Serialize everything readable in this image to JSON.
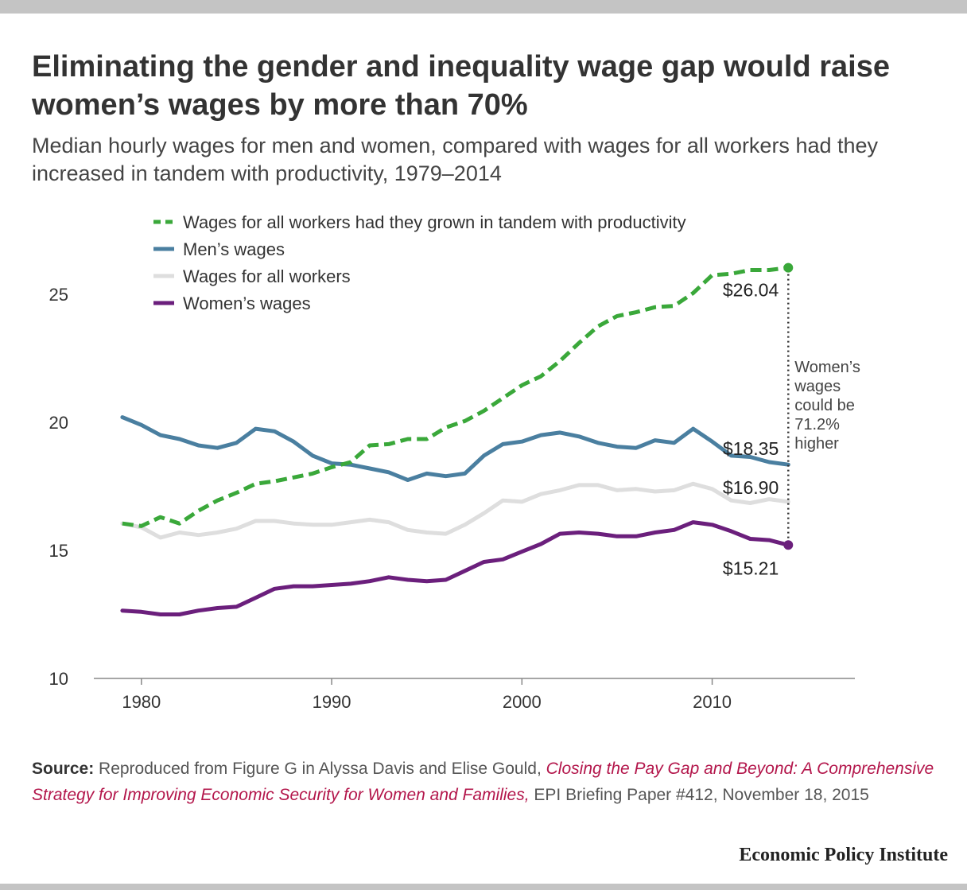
{
  "title": "Eliminating the gender and inequality wage gap would raise women’s wages by more than 70%",
  "subtitle": "Median hourly wages for men and women, compared with wages for all workers had they increased in tandem with productivity, 1979–2014",
  "source": {
    "label": "Source:",
    "text_before": "Reproduced from Figure G in Alyssa Davis and Elise Gould,",
    "italic_title": "Closing the Pay Gap and Beyond: A Comprehensive Strategy for Improving Economic Security for Women and Families,",
    "text_after": "EPI Briefing Paper #412, November 18, 2015"
  },
  "brand": "Economic Policy Institute",
  "chart_data": {
    "type": "line",
    "x": [
      1979,
      1980,
      1981,
      1982,
      1983,
      1984,
      1985,
      1986,
      1987,
      1988,
      1989,
      1990,
      1991,
      1992,
      1993,
      1994,
      1995,
      1996,
      1997,
      1998,
      1999,
      2000,
      2001,
      2002,
      2003,
      2004,
      2005,
      2006,
      2007,
      2008,
      2009,
      2010,
      2011,
      2012,
      2013,
      2014
    ],
    "series": [
      {
        "name": "Wages for all workers had they grown in tandem with productivity",
        "color": "#3aa83a",
        "style": "dashed",
        "values": [
          16.05,
          15.95,
          16.3,
          16.05,
          16.55,
          16.95,
          17.25,
          17.6,
          17.7,
          17.85,
          18.0,
          18.25,
          18.45,
          19.1,
          19.15,
          19.35,
          19.35,
          19.8,
          20.05,
          20.45,
          20.95,
          21.45,
          21.8,
          22.4,
          23.1,
          23.75,
          24.15,
          24.3,
          24.5,
          24.55,
          25.05,
          25.75,
          25.8,
          25.95,
          25.95,
          26.04
        ]
      },
      {
        "name": "Men’s wages",
        "color": "#4a7fa0",
        "style": "solid",
        "values": [
          20.2,
          19.9,
          19.5,
          19.35,
          19.1,
          19.0,
          19.2,
          19.75,
          19.65,
          19.25,
          18.7,
          18.4,
          18.35,
          18.2,
          18.05,
          17.75,
          18.0,
          17.9,
          18.0,
          18.7,
          19.15,
          19.25,
          19.5,
          19.6,
          19.45,
          19.2,
          19.05,
          19.0,
          19.3,
          19.2,
          19.75,
          19.25,
          18.7,
          18.65,
          18.45,
          18.35
        ]
      },
      {
        "name": "Wages for all workers",
        "color": "#dedede",
        "style": "solid",
        "values": [
          16.05,
          15.9,
          15.5,
          15.7,
          15.6,
          15.7,
          15.85,
          16.15,
          16.15,
          16.05,
          16.0,
          16.0,
          16.1,
          16.2,
          16.1,
          15.8,
          15.7,
          15.65,
          16.0,
          16.45,
          16.95,
          16.9,
          17.2,
          17.35,
          17.55,
          17.55,
          17.35,
          17.4,
          17.3,
          17.35,
          17.6,
          17.4,
          16.95,
          16.85,
          17.0,
          16.9
        ]
      },
      {
        "name": "Women’s wages",
        "color": "#6b1f7c",
        "style": "solid",
        "values": [
          12.65,
          12.6,
          12.5,
          12.5,
          12.65,
          12.75,
          12.8,
          13.15,
          13.5,
          13.6,
          13.6,
          13.65,
          13.7,
          13.8,
          13.95,
          13.85,
          13.8,
          13.85,
          14.2,
          14.55,
          14.65,
          14.95,
          15.25,
          15.65,
          15.7,
          15.65,
          15.55,
          15.55,
          15.7,
          15.8,
          16.1,
          16.0,
          15.75,
          15.45,
          15.4,
          15.21
        ]
      }
    ],
    "xticks": [
      1980,
      1990,
      2000,
      2010
    ],
    "yticks": [
      10,
      15,
      20,
      25
    ],
    "xlim": [
      1977.5,
      2017.5
    ],
    "ylim": [
      10,
      26.4
    ],
    "grid": false,
    "legend": "top-left",
    "end_labels": [
      "$26.04",
      "$18.35",
      "$16.90",
      "$15.21"
    ],
    "annotation": [
      "Women’s",
      "wages",
      "could be",
      "71.2%",
      "higher"
    ]
  }
}
